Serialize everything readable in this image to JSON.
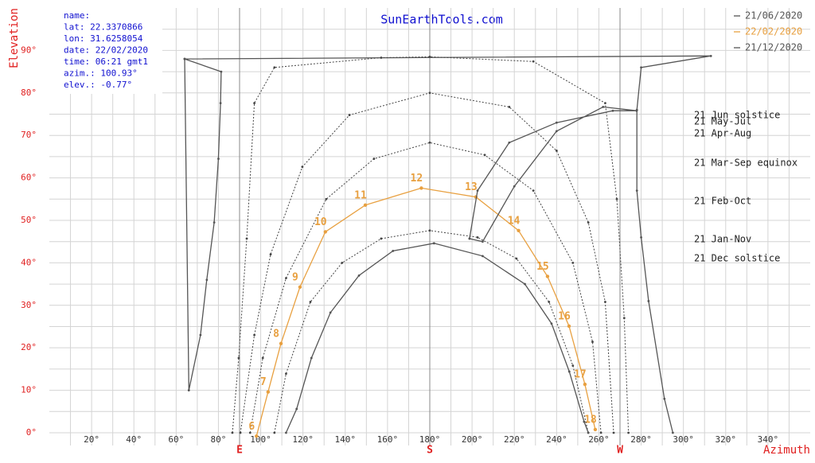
{
  "chart_data": {
    "type": "line",
    "title": "SunEarthTools.com",
    "y_label": "Elevation",
    "x_label": "Azimuth",
    "xlim": [
      0,
      360
    ],
    "ylim": [
      -3,
      100
    ],
    "xticks": [
      {
        "value": 20,
        "label": "20°"
      },
      {
        "value": 40,
        "label": "40°"
      },
      {
        "value": 60,
        "label": "60°"
      },
      {
        "value": 80,
        "label": "80°"
      },
      {
        "value": 100,
        "label": "100°"
      },
      {
        "value": 120,
        "label": "120°"
      },
      {
        "value": 140,
        "label": "140°"
      },
      {
        "value": 160,
        "label": "160°"
      },
      {
        "value": 180,
        "label": "180°"
      },
      {
        "value": 200,
        "label": "200°"
      },
      {
        "value": 220,
        "label": "220°"
      },
      {
        "value": 240,
        "label": "240°"
      },
      {
        "value": 260,
        "label": "260°"
      },
      {
        "value": 280,
        "label": "280°"
      },
      {
        "value": 300,
        "label": "300°"
      },
      {
        "value": 320,
        "label": "320°"
      },
      {
        "value": 340,
        "label": "340°"
      }
    ],
    "minor_xticks": [
      10,
      30,
      50,
      70,
      90,
      110,
      130,
      150,
      170,
      190,
      210,
      230,
      250,
      270,
      290,
      310,
      330,
      350
    ],
    "yticks": [
      {
        "value": 0,
        "label": "0°"
      },
      {
        "value": 10,
        "label": "10°"
      },
      {
        "value": 20,
        "label": "20°"
      },
      {
        "value": 30,
        "label": "30°"
      },
      {
        "value": 40,
        "label": "40°"
      },
      {
        "value": 50,
        "label": "50°"
      },
      {
        "value": 60,
        "label": "60°"
      },
      {
        "value": 70,
        "label": "70°"
      },
      {
        "value": 80,
        "label": "80°"
      },
      {
        "value": 90,
        "label": "90°"
      }
    ],
    "minor_yticks": [
      5,
      15,
      25,
      35,
      45,
      55,
      65,
      75,
      85,
      95
    ],
    "grid": true,
    "direction_labels": [
      {
        "value": 90,
        "label": "E"
      },
      {
        "value": 180,
        "label": "S"
      },
      {
        "value": 270,
        "label": "W"
      }
    ],
    "info": [
      "name:",
      "lat: 22.3370866",
      "lon: 31.6258054",
      "date: 22/02/2020",
      "time: 06:21 gmt1",
      "azim.: 100.93°",
      "elev.: -0.77°"
    ],
    "series": [
      {
        "name": "21/06/2020",
        "label": "21 Jun  solstice",
        "color": "#555555",
        "dash": false,
        "x": [
          64,
          66,
          71.5,
          74.5,
          78,
          80,
          81,
          81.3,
          64,
          313,
          280,
          278,
          278,
          280,
          283.5,
          291,
          295
        ],
        "values": [
          88,
          10,
          23,
          36,
          49.5,
          64.5,
          77.6,
          85,
          88,
          88.7,
          86,
          76,
          57,
          46,
          31,
          8,
          0
        ]
      },
      {
        "label": "21 May-Jul",
        "color": "#444444",
        "dash": true,
        "x": [
          86.6,
          89.6,
          93.4,
          97,
          106.5,
          157,
          180,
          229,
          263,
          268.5,
          272,
          274
        ],
        "values": [
          0,
          17.6,
          45.7,
          77.6,
          86,
          88.3,
          88.5,
          87.4,
          77.6,
          55,
          27,
          0
        ]
      },
      {
        "label": "21 Apr-Aug",
        "color": "#444444",
        "dash": true,
        "x": [
          90.4,
          97,
          104.7,
          119.7,
          142,
          180,
          217.6,
          240,
          255,
          263,
          267
        ],
        "values": [
          0,
          23,
          42,
          62.6,
          74.8,
          80,
          76.7,
          66.4,
          49.5,
          30.8,
          0
        ]
      },
      {
        "label": "21 Mar-Sep equinox",
        "color": "#444444",
        "dash": true,
        "x": [
          95,
          101,
          112,
          131,
          153.6,
          180,
          206,
          229,
          247.7,
          257,
          261
        ],
        "values": [
          0,
          17.6,
          36.4,
          55,
          64.5,
          68.3,
          65.4,
          57,
          40,
          21.4,
          0
        ]
      },
      {
        "name": "22/02/2020",
        "label": "21 Feb-Oct",
        "color": "#e8a040",
        "dash": false,
        "hours": [
          6,
          7,
          8,
          9,
          10,
          11,
          12,
          13,
          14,
          15,
          16,
          17,
          18
        ],
        "x": [
          98,
          103.5,
          109.6,
          118.6,
          130.6,
          149.5,
          176,
          201.8,
          222,
          235.7,
          245.9,
          253.4,
          258.3
        ],
        "values": [
          -0.8,
          9.6,
          21,
          34.3,
          47.3,
          53.6,
          57.6,
          55.5,
          47.6,
          36.8,
          25.1,
          11.4,
          0.75
        ]
      },
      {
        "label": "21 Jan-Nov",
        "color": "#444444",
        "dash": true,
        "x": [
          106.5,
          112,
          123.5,
          138.5,
          157,
          180,
          202.6,
          221,
          236.4,
          247.7,
          255
        ],
        "values": [
          0,
          13.9,
          30.8,
          40,
          45.7,
          47.6,
          46,
          41,
          30.8,
          15.8,
          0
        ]
      },
      {
        "name": "21/12/2020",
        "label": "21 Dec  solstice",
        "color": "#555555",
        "dash": false,
        "x": [
          112,
          117,
          124,
          133,
          146.5,
          162.6,
          182,
          205,
          225,
          237.6,
          246,
          253,
          255
        ],
        "values": [
          0,
          5.6,
          17.6,
          28.3,
          37,
          42.8,
          44.6,
          41.6,
          35,
          25.7,
          14.4,
          2.6,
          0
        ]
      },
      {
        "color": "#555555",
        "dash": false,
        "x": [
          198.8,
          202.6,
          217.6,
          240,
          266.6,
          277.9,
          262,
          240,
          220,
          205,
          198.8
        ],
        "values": [
          45.7,
          57,
          68.3,
          73,
          75.8,
          75.8,
          76.7,
          71,
          58,
          45,
          45.7
        ]
      }
    ]
  }
}
